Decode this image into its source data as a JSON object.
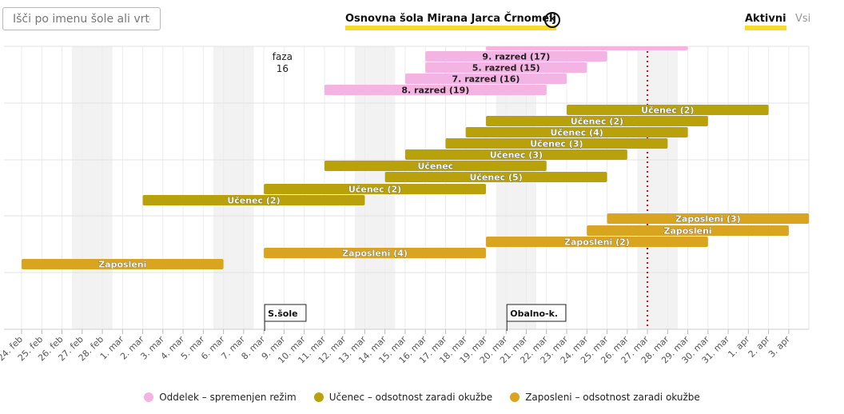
{
  "search": {
    "placeholder": "Išči po imenu šole ali vrtca"
  },
  "header": {
    "school_name": "Osnovna šola Mirana Jarca Črnomelj",
    "close_icon": "close-circle-icon"
  },
  "tabs": {
    "active": "Aktivni",
    "all": "Vsi"
  },
  "colors": {
    "oddelek": "#f3b3e3",
    "ucenec": "#b8a10b",
    "zaposleni": "#d9a520",
    "today_line": "#c0111f",
    "weekend_band": "#f2f2f2"
  },
  "chart_data": {
    "type": "gantt-timeline",
    "x_axis": {
      "start": "2021-02-24",
      "end": "2021-04-03",
      "tick_labels": [
        "24. feb",
        "25. feb",
        "26. feb",
        "27. feb",
        "28. feb",
        "1. mar",
        "2. mar",
        "3. mar",
        "4. mar",
        "5. mar",
        "6. mar",
        "7. mar",
        "8. mar",
        "9. mar",
        "10. mar",
        "11. mar",
        "12. mar",
        "13. mar",
        "14. mar",
        "15. mar",
        "16. mar",
        "17. mar",
        "18. mar",
        "19. mar",
        "20. mar",
        "21. mar",
        "22. mar",
        "23. mar",
        "24. mar",
        "25. mar",
        "26. mar",
        "27. mar",
        "28. mar",
        "29. mar",
        "30. mar",
        "31. mar",
        "1. apr",
        "2. apr",
        "3. apr"
      ]
    },
    "weekend_bands": [
      [
        "2021-02-27",
        "2021-02-28"
      ],
      [
        "2021-03-06",
        "2021-03-07"
      ],
      [
        "2021-03-13",
        "2021-03-14"
      ],
      [
        "2021-03-20",
        "2021-03-21"
      ],
      [
        "2021-03-27",
        "2021-03-28"
      ]
    ],
    "today": "2021-03-27",
    "annotations": [
      {
        "date": "2021-03-09",
        "label": "faza",
        "value": "16"
      }
    ],
    "markers": [
      {
        "date": "2021-03-08",
        "label": "S.šole"
      },
      {
        "date": "2021-03-20",
        "label": "Obalno-k."
      }
    ],
    "series": [
      {
        "name": "Oddelek - spremenjen režim",
        "color_key": "oddelek",
        "bars": [
          {
            "label": "",
            "start": "2021-03-19",
            "end": "2021-03-28"
          },
          {
            "label": "9. razred (17)",
            "start": "2021-03-16",
            "end": "2021-03-24"
          },
          {
            "label": "5. razred (15)",
            "start": "2021-03-16",
            "end": "2021-03-23"
          },
          {
            "label": "7. razred (16)",
            "start": "2021-03-15",
            "end": "2021-03-22"
          },
          {
            "label": "8. razred (19)",
            "start": "2021-03-11",
            "end": "2021-03-21"
          }
        ]
      },
      {
        "name": "Učenec - odsotnost zaradi okužbe",
        "color_key": "ucenec",
        "bars": [
          {
            "label": "Učenec (2)",
            "start": "2021-03-23",
            "end": "2021-04-01"
          },
          {
            "label": "Učenec (2)",
            "start": "2021-03-19",
            "end": "2021-03-29"
          },
          {
            "label": "Učenec (4)",
            "start": "2021-03-18",
            "end": "2021-03-28"
          },
          {
            "label": "Učenec (3)",
            "start": "2021-03-17",
            "end": "2021-03-27"
          },
          {
            "label": "Učenec (3)",
            "start": "2021-03-15",
            "end": "2021-03-25"
          },
          {
            "label": "Učenec",
            "start": "2021-03-11",
            "end": "2021-03-21"
          },
          {
            "label": "Učenec (5)",
            "start": "2021-03-14",
            "end": "2021-03-24"
          },
          {
            "label": "Učenec (2)",
            "start": "2021-03-08",
            "end": "2021-03-18"
          },
          {
            "label": "Učenec (2)",
            "start": "2021-03-02",
            "end": "2021-03-12"
          }
        ]
      },
      {
        "name": "Zaposleni - odsotnost zaradi okužbe",
        "color_key": "zaposleni",
        "bars": [
          {
            "label": "Zaposleni (3)",
            "start": "2021-03-25",
            "end": "2021-04-03"
          },
          {
            "label": "Zaposleni",
            "start": "2021-03-24",
            "end": "2021-04-02"
          },
          {
            "label": "Zaposleni (2)",
            "start": "2021-03-19",
            "end": "2021-03-29"
          },
          {
            "label": "Zaposleni (4)",
            "start": "2021-03-08",
            "end": "2021-03-18"
          },
          {
            "label": "Zaposleni",
            "start": "2021-02-24",
            "end": "2021-03-05"
          }
        ]
      }
    ],
    "legend": [
      {
        "label": "Oddelek – spremenjen režim",
        "color_key": "oddelek"
      },
      {
        "label": "Učenec – odsotnost zaradi okužbe",
        "color_key": "ucenec"
      },
      {
        "label": "Zaposleni – odsotnost zaradi okužbe",
        "color_key": "zaposleni"
      }
    ],
    "grid": true,
    "legend_position": "bottom"
  }
}
